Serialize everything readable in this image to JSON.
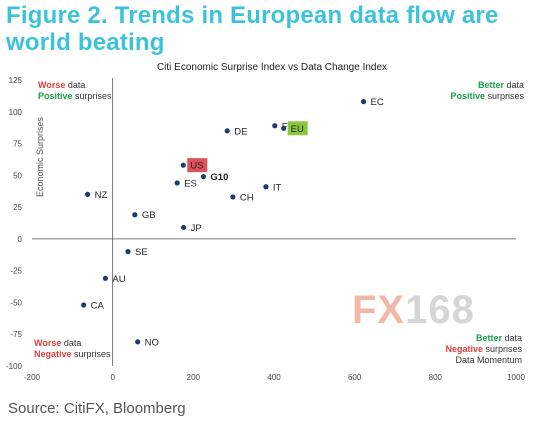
{
  "figure_title": "Figure 2. Trends in European data flow are world beating",
  "source": "Source: CitiFX, Bloomberg",
  "watermark": {
    "fx": "FX",
    "num": "168"
  },
  "quadrant_labels": {
    "top_left": {
      "worse": "Worse",
      "data": " data",
      "positive": "Positive",
      "surprises": " surprises"
    },
    "top_right": {
      "better": "Better",
      "data": " data",
      "positive": "Positive",
      "surprises": " surprises"
    },
    "bottom_left": {
      "worse": "Worse",
      "data": " data",
      "negative": "Negative",
      "surprises": " surprises"
    },
    "bottom_right": {
      "better": "Better",
      "data": " data",
      "negative": "Negative",
      "surprises": " surprises",
      "axis_note": "Data Momentum"
    }
  },
  "colors": {
    "title": "#3cc3dc",
    "point": "#1f3a6e",
    "us_highlight": "#e0505a",
    "eu_highlight": "#8cc63f"
  },
  "chart_data": {
    "type": "scatter",
    "title": "Citi Economic Surprise Index vs Data Change Index",
    "xlabel": "Data Momentum",
    "ylabel": "Economic Surprises",
    "xlim": [
      -200,
      1000
    ],
    "ylim": [
      -100,
      125
    ],
    "xticks": [
      -200,
      0,
      200,
      400,
      600,
      800,
      1000
    ],
    "yticks": [
      -100,
      -75,
      -50,
      -25,
      0,
      25,
      50,
      75,
      100,
      125
    ],
    "grid": false,
    "points": [
      {
        "label": "EC",
        "x": 622,
        "y": 108
      },
      {
        "label": "FR",
        "x": 402,
        "y": 89
      },
      {
        "label": "EU",
        "x": 424,
        "y": 87,
        "highlight": "eu"
      },
      {
        "label": "DE",
        "x": 284,
        "y": 85
      },
      {
        "label": "US",
        "x": 175,
        "y": 58,
        "highlight": "us"
      },
      {
        "label": "G10",
        "x": 225,
        "y": 49,
        "bold": true
      },
      {
        "label": "ES",
        "x": 160,
        "y": 44
      },
      {
        "label": "IT",
        "x": 380,
        "y": 41
      },
      {
        "label": "CH",
        "x": 298,
        "y": 33
      },
      {
        "label": "NZ",
        "x": -62,
        "y": 35
      },
      {
        "label": "GB",
        "x": 55,
        "y": 19
      },
      {
        "label": "JP",
        "x": 176,
        "y": 9
      },
      {
        "label": "SE",
        "x": 38,
        "y": -10
      },
      {
        "label": "AU",
        "x": -18,
        "y": -31
      },
      {
        "label": "CA",
        "x": -72,
        "y": -52
      },
      {
        "label": "NO",
        "x": 62,
        "y": -81
      }
    ]
  }
}
